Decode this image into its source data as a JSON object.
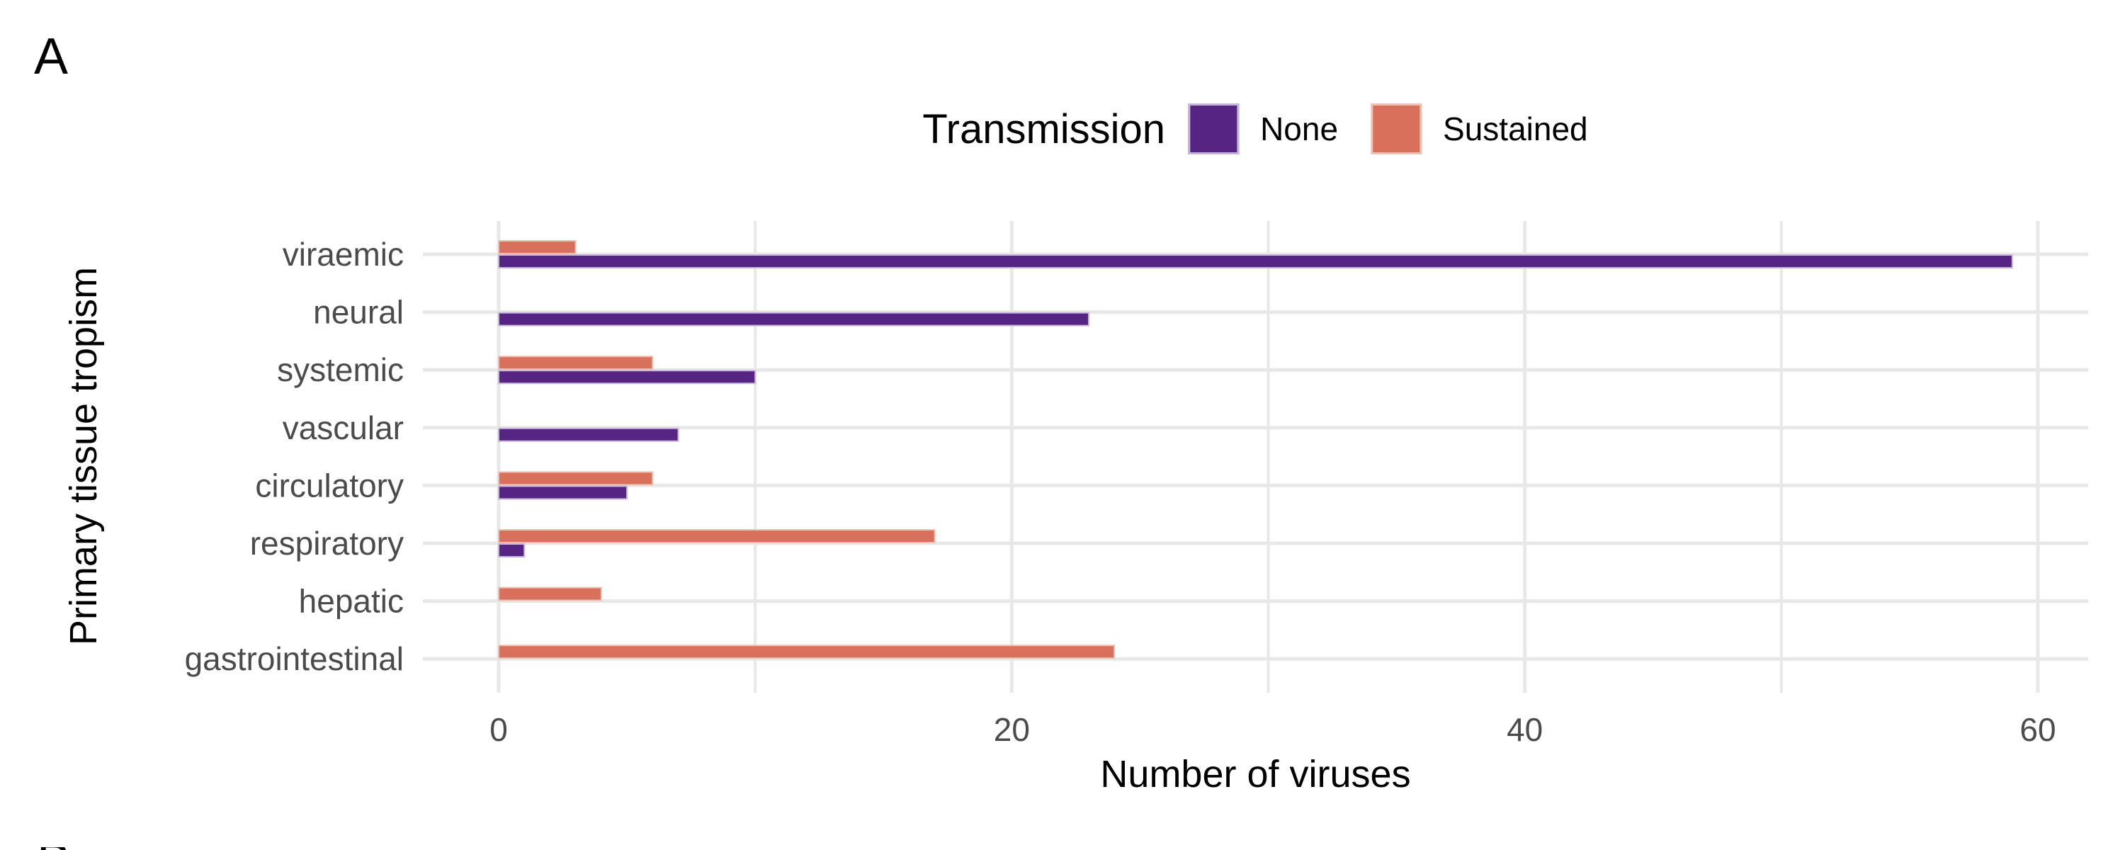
{
  "panel": {
    "label": "A",
    "next_panel_partial_label": "B"
  },
  "legend": {
    "title": "Transmission",
    "items": [
      {
        "label": "None",
        "color": "#562583",
        "border": "#c9b4dc"
      },
      {
        "label": "Sustained",
        "color": "#d8705c",
        "border": "#efc3b4"
      }
    ]
  },
  "chart_data": {
    "type": "bar",
    "orientation": "horizontal",
    "title": "",
    "xlabel": "Number of viruses",
    "ylabel": "Primary tissue tropism",
    "categories": [
      "viraemic",
      "neural",
      "systemic",
      "vascular",
      "circulatory",
      "respiratory",
      "hepatic",
      "gastrointestinal"
    ],
    "series": [
      {
        "name": "None",
        "color": "#562583",
        "border": "#c9b4dc",
        "values": [
          59,
          23,
          10,
          7,
          5,
          1,
          0,
          0
        ]
      },
      {
        "name": "Sustained",
        "color": "#d8705c",
        "border": "#efc3b4",
        "values": [
          3,
          0,
          6,
          0,
          6,
          17,
          4,
          24
        ]
      }
    ],
    "xlim": [
      0,
      60
    ],
    "x_major_ticks": [
      0,
      20,
      40,
      60
    ],
    "x_minor_gridlines": [
      10,
      30,
      50
    ],
    "grid": true,
    "gridline_color": "#e8e8e8",
    "axis_text_color": "#4b4b4b",
    "legend_position": "top"
  }
}
